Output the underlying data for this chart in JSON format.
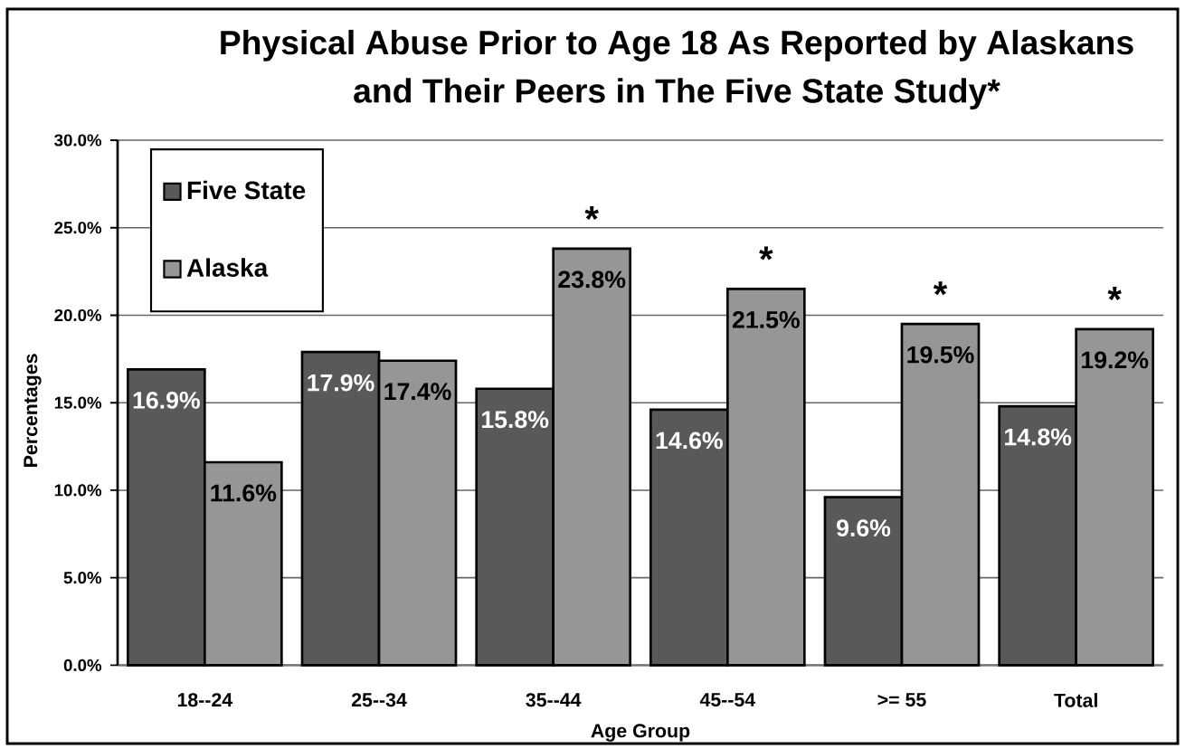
{
  "chart_data": {
    "type": "bar",
    "title": "Physical Abuse Prior to Age 18 As Reported by Alaskans and Their Peers in The Five State Study*",
    "xlabel": "Age Group",
    "ylabel": "Percentages",
    "categories": [
      "18--24",
      "25--34",
      "35--44",
      "45--54",
      ">= 55",
      "Total"
    ],
    "series": [
      {
        "name": "Five State",
        "color": "#595959",
        "values": [
          16.9,
          17.9,
          15.8,
          14.6,
          9.6,
          14.8
        ],
        "value_labels": [
          "16.9%",
          "17.9%",
          "15.8%",
          "14.6%",
          "9.6%",
          "14.8%"
        ]
      },
      {
        "name": "Alaska",
        "color": "#969696",
        "values": [
          11.6,
          17.4,
          23.8,
          21.5,
          19.5,
          19.2
        ],
        "value_labels": [
          "11.6%",
          "17.4%",
          "23.8%",
          "21.5%",
          "19.5%",
          "19.2%"
        ]
      }
    ],
    "ylim": [
      0,
      30
    ],
    "yticks": [
      {
        "value": 0,
        "label": "0.0%"
      },
      {
        "value": 5,
        "label": "5.0%"
      },
      {
        "value": 10,
        "label": "10.0%"
      },
      {
        "value": 15,
        "label": "15.0%"
      },
      {
        "value": 20,
        "label": "20.0%"
      },
      {
        "value": 25,
        "label": "25.0%"
      },
      {
        "value": 30,
        "label": "30.0%"
      }
    ],
    "grid": "y",
    "legend": "top left",
    "annotations": [
      {
        "text": "*",
        "x": "35--44",
        "y": 23.8
      },
      {
        "text": "*",
        "x": "45--54",
        "y": 21.5
      },
      {
        "text": "*",
        "x": ">= 55",
        "y": 19.5
      },
      {
        "text": "*",
        "x": "Total",
        "y": 19.2
      }
    ]
  }
}
